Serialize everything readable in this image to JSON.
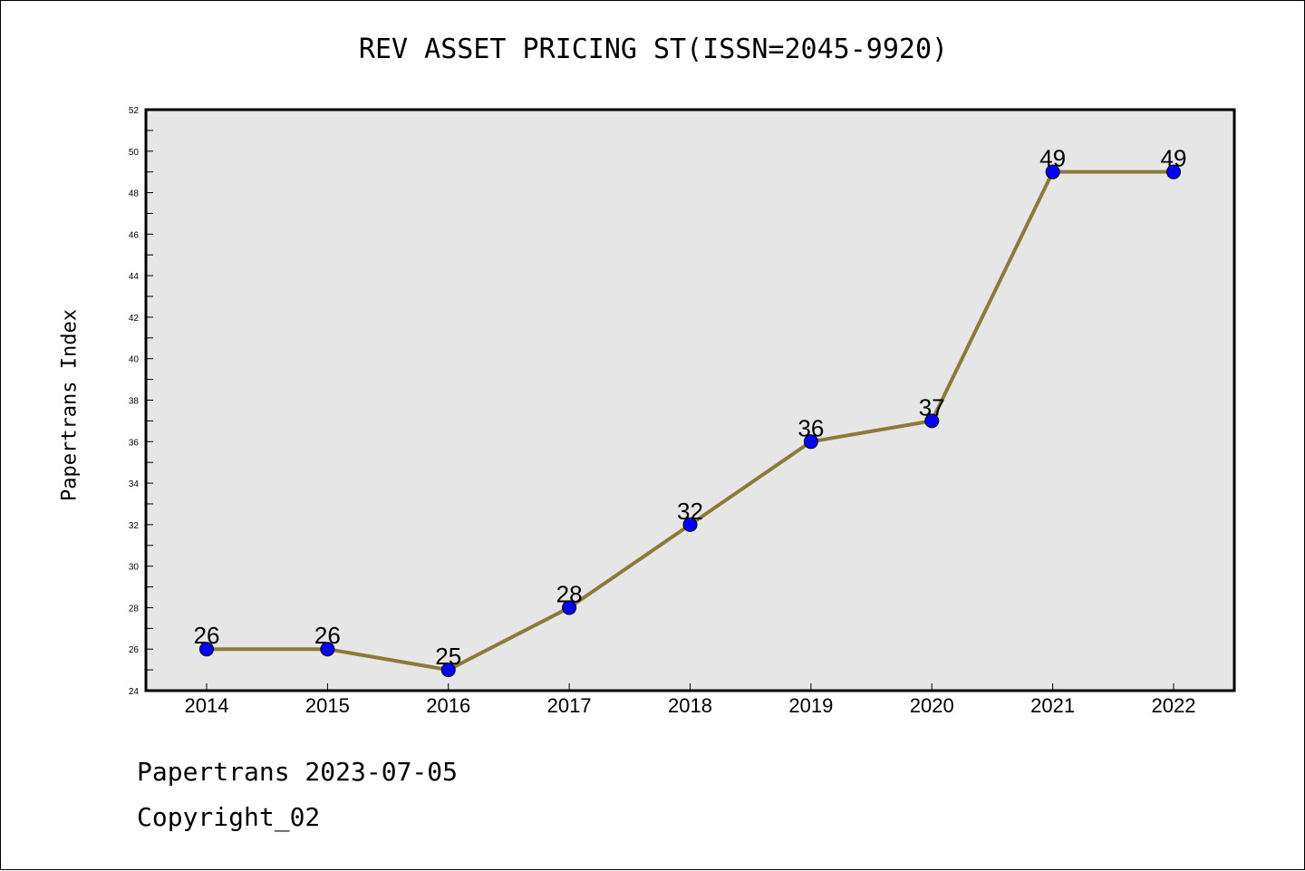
{
  "chart_data": {
    "type": "line",
    "title": "REV ASSET PRICING ST(ISSN=2045-9920)",
    "xlabel": "",
    "ylabel": "Papertrans Index",
    "categories": [
      "2014",
      "2015",
      "2016",
      "2017",
      "2018",
      "2019",
      "2020",
      "2021",
      "2022"
    ],
    "series": [
      {
        "values": [
          26,
          26,
          25,
          28,
          32,
          36,
          37,
          49,
          49
        ]
      }
    ],
    "ylim": [
      24,
      52
    ],
    "yticks": [
      24,
      26,
      28,
      30,
      32,
      34,
      36,
      38,
      40,
      42,
      44,
      46,
      48,
      50,
      52
    ],
    "data_labels": true,
    "grid": false,
    "line_color": "#8c7a3a",
    "marker_color": "#0000ff",
    "plot_background": "#e6e6e6"
  },
  "footer": {
    "line1": "Papertrans 2023-07-05",
    "line2": "Copyright_02"
  }
}
